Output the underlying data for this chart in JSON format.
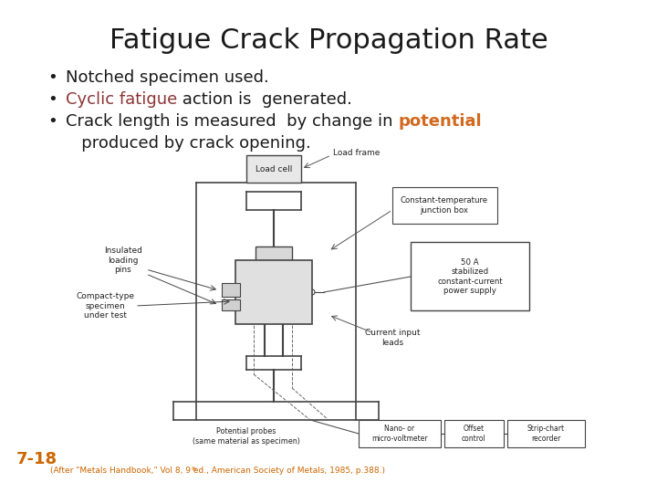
{
  "title": "Fatigue Crack Propagation Rate",
  "title_fontsize": 22,
  "title_color": "#1a1a1a",
  "bg_color": "#ffffff",
  "bullet_fontsize": 13,
  "bullet1_text": "Notched specimen used.",
  "bullet1_color": "#1a1a1a",
  "bullet2_part1": "Cyclic fatigue",
  "bullet2_part1_color": "#8B3535",
  "bullet2_part2": " action is  generated.",
  "bullet2_part2_color": "#1a1a1a",
  "bullet3_part1": "Crack length is measured  by change in ",
  "bullet3_part1_color": "#1a1a1a",
  "bullet3_part2": "potential",
  "bullet3_part2_color": "#D2691E",
  "continuation": "   produced by crack opening.",
  "continuation_color": "#1a1a1a",
  "page_num": "7-18",
  "page_num_color": "#cc6600",
  "citation_color": "#cc6600",
  "citation_pre": "(After \"Metals Handbook,\" Vol 8, 9",
  "citation_sup": "th",
  "citation_post": " ed., American Society of Metals, 1985, p.388.)"
}
